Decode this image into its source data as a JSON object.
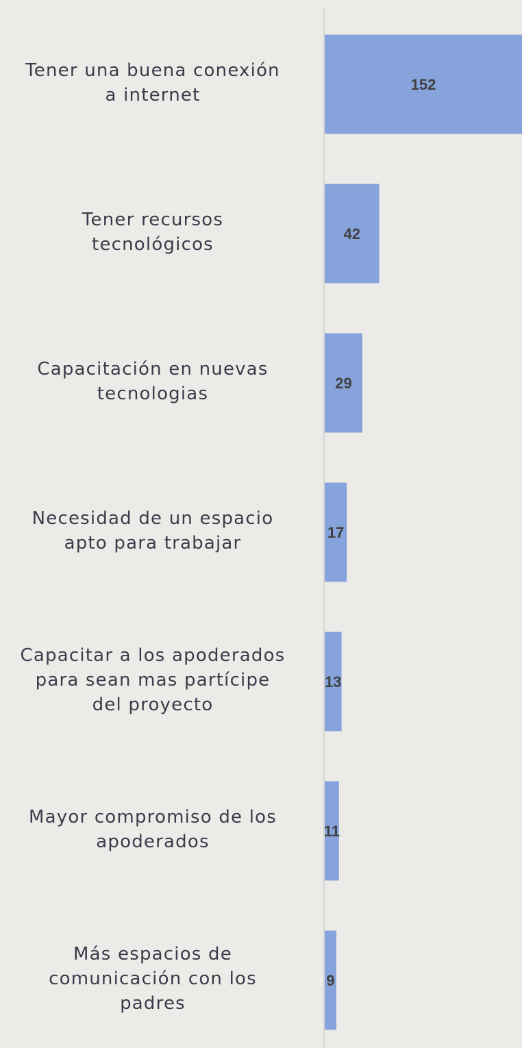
{
  "chart_data": {
    "type": "barh",
    "categories": [
      "Tener una buena conexión\na internet",
      "Tener recursos\ntecnológicos",
      "Capacitación en nuevas\ntecnologias",
      "Necesidad de un espacio\napto para trabajar",
      "Capacitar a los apoderados\npara sean mas partícipe\ndel proyecto",
      "Mayor compromiso de los\napoderados",
      "Más espacios de\ncomunicación con los\npadres"
    ],
    "values": [
      152,
      42,
      29,
      17,
      13,
      11,
      9
    ],
    "color": "#87a3dc"
  }
}
